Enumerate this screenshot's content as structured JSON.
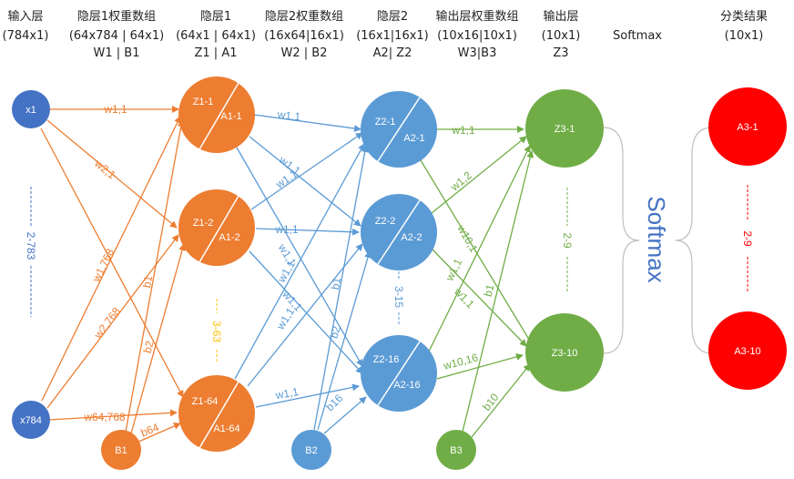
{
  "colors": {
    "input": "#4472C4",
    "hidden1": "#ED7D31",
    "hidden2": "#5B9BD5",
    "output": "#70AD47",
    "result": "#FF0000",
    "softmax": "#4472C4",
    "bracket": "#BFBFBF",
    "hidden1_dots": "#FFC000"
  },
  "headers": {
    "input": [
      "输入层",
      "(784x1)"
    ],
    "w1": [
      "隐层1权重数组",
      "(64x784 | 64x1)",
      "W1 | B1"
    ],
    "hidden1": [
      "隐层1",
      "(64x1 | 64x1)",
      "Z1 | A1"
    ],
    "w2": [
      "隐层2权重数组",
      "(16x64|16x1)",
      "W2 | B2"
    ],
    "hidden2": [
      "隐层2",
      "(16x1|16x1)",
      "A2| Z2"
    ],
    "w3": [
      "输出层权重数组",
      "(10x16|10x1)",
      "W3|B3"
    ],
    "output": [
      "输出层",
      "(10x1)",
      "Z3"
    ],
    "softmax": [
      "Softmax"
    ],
    "result": [
      "分类结果",
      "(10x1)"
    ]
  },
  "nodes": {
    "x1": "x1",
    "x784": "x784",
    "b1": "B1",
    "h1_1": [
      "Z1-1",
      "A1-1"
    ],
    "h1_2": [
      "Z1-2",
      "A1-2"
    ],
    "h1_64": [
      "Z1-64",
      "A1-64"
    ],
    "b2": "B2",
    "h2_1": [
      "Z2-1",
      "A2-1"
    ],
    "h2_2": [
      "Z2-2",
      "A2-2"
    ],
    "h2_16": [
      "Z2-16",
      "A2-16"
    ],
    "b3": "B3",
    "o1": "Z3-1",
    "o10": "Z3-10",
    "r1": "A3-1",
    "r10": "A3-10"
  },
  "dots": {
    "input": "2-783",
    "hidden1": "3-63",
    "hidden2": "3-15",
    "output": "2-9",
    "result": "2-9"
  },
  "softmax_label": "Softmax",
  "weights": {
    "l1": [
      "w1,1",
      "w2,1",
      "w1,768",
      "w2,768",
      "w64,768",
      "b1",
      "b2",
      "b64"
    ],
    "l2": [
      "w1,1",
      "w1,1",
      "w1,1",
      "w1,1",
      "w1,1",
      "w1,1",
      "w1,1",
      "w1,1",
      "w1,1",
      "b1",
      "b2",
      "b16"
    ],
    "l3": [
      "w1,1",
      "w1,2",
      "w10,1",
      "w1,1",
      "w1,1",
      "w10,16",
      "b1",
      "b10"
    ]
  }
}
